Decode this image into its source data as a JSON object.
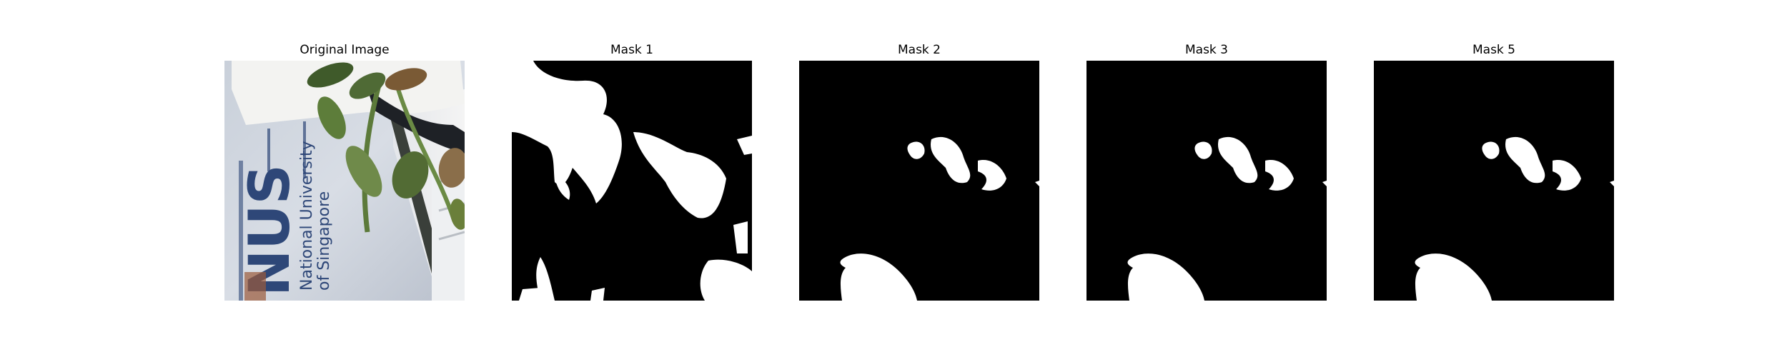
{
  "figure": {
    "panels": [
      {
        "title": "Original Image"
      },
      {
        "title": "Mask 1"
      },
      {
        "title": "Mask 2"
      },
      {
        "title": "Mask 3"
      },
      {
        "title": "Mask 5"
      }
    ],
    "photo": {
      "sign_text": "NUS",
      "sign_subtext_1": "National University",
      "sign_subtext_2": "of Singapore"
    },
    "colors": {
      "mask_background": "#000000",
      "mask_foreground": "#ffffff",
      "sign_blue": "#2e4778",
      "leaf_green": "#4f6a35"
    }
  }
}
